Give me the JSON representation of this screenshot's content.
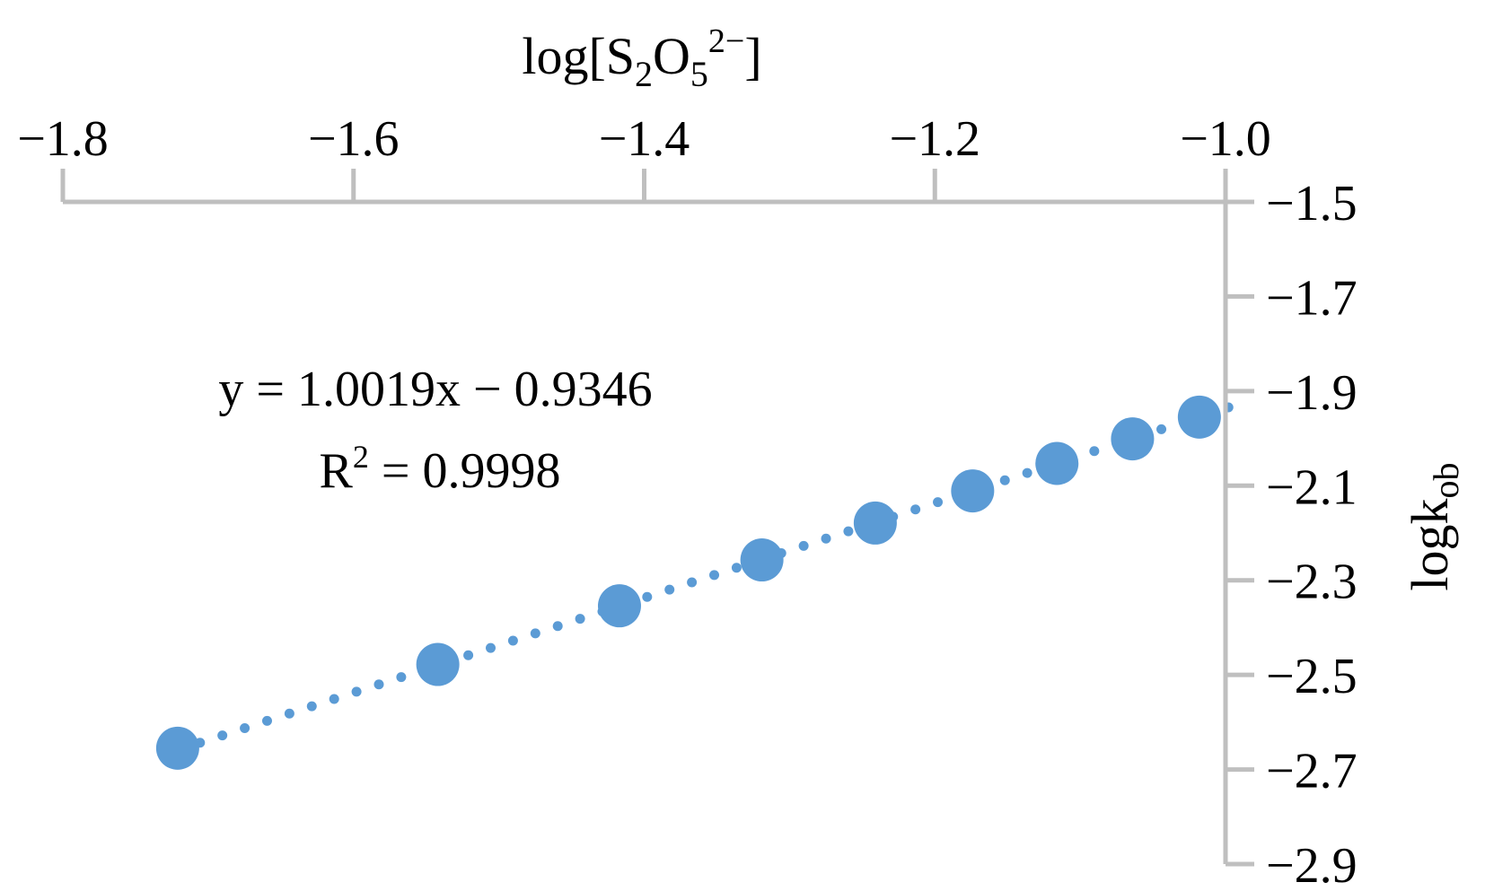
{
  "chart_data": {
    "type": "scatter",
    "xlabel_parts": {
      "base": "log[S",
      "sub1": "2",
      "mid": "O",
      "sub2": "5",
      "sup": "2−",
      "end": "]"
    },
    "ylabel_parts": {
      "base": "logk",
      "sub": "ob"
    },
    "x_axis_position": "top",
    "y_axis_position": "right",
    "xlim": [
      -1.8,
      -1.0
    ],
    "ylim": [
      -2.9,
      -1.5
    ],
    "x_ticks": [
      -1.8,
      -1.6,
      -1.4,
      -1.2,
      -1.0
    ],
    "x_tick_labels": [
      "−1.8",
      "−1.6",
      "−1.4",
      "−1.2",
      "−1.0"
    ],
    "y_ticks": [
      -1.5,
      -1.7,
      -1.9,
      -2.1,
      -2.3,
      -2.5,
      -2.7,
      -2.9
    ],
    "y_tick_labels": [
      "−1.5",
      "−1.7",
      "−1.9",
      "−2.1",
      "−2.3",
      "−2.5",
      "−2.7",
      "−2.9"
    ],
    "grid": false,
    "series": [
      {
        "marker_color": "#5b9bd5",
        "x": [
          -1.721,
          -1.542,
          -1.417,
          -1.319,
          -1.241,
          -1.174,
          -1.116,
          -1.064,
          -1.018
        ],
        "y": [
          -2.655,
          -2.478,
          -2.354,
          -2.257,
          -2.179,
          -2.111,
          -2.053,
          -2.001,
          -1.955
        ]
      }
    ],
    "trendline": {
      "style": "dotted",
      "color": "#5b9bd5",
      "slope": 1.0019,
      "intercept": -0.9346,
      "equation": "y = 1.0019x − 0.9346",
      "r2_label": "R",
      "r2_sup": "2",
      "r2_value": " = 0.9998"
    }
  }
}
